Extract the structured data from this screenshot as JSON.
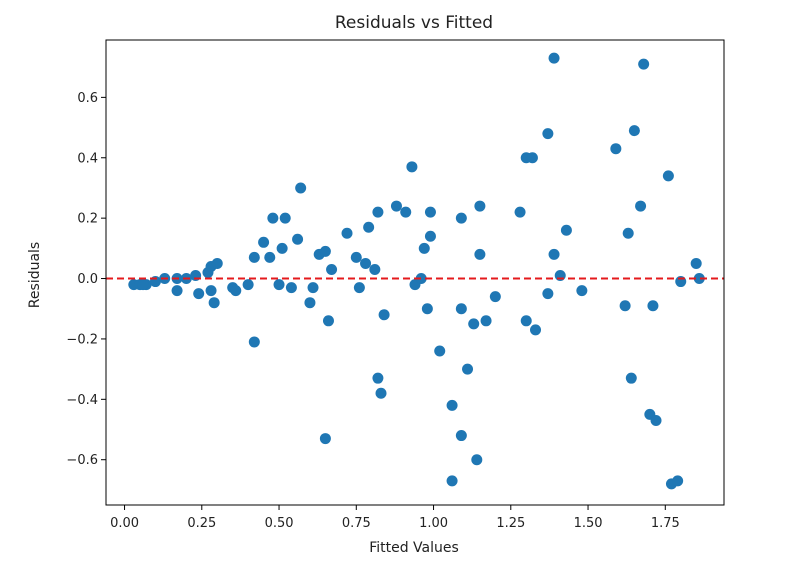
{
  "chart_data": {
    "type": "scatter",
    "title": "Residuals vs Fitted",
    "xlabel": "Fitted Values",
    "ylabel": "Residuals",
    "xlim": [
      -0.06,
      1.94
    ],
    "ylim": [
      -0.75,
      0.79
    ],
    "xticks": [
      0.0,
      0.25,
      0.5,
      0.75,
      1.0,
      1.25,
      1.5,
      1.75
    ],
    "xtick_labels": [
      "0.00",
      "0.25",
      "0.50",
      "0.75",
      "1.00",
      "1.25",
      "1.50",
      "1.75"
    ],
    "yticks": [
      -0.6,
      -0.4,
      -0.2,
      0.0,
      0.2,
      0.4,
      0.6
    ],
    "ytick_labels": [
      "−0.6",
      "−0.4",
      "−0.2",
      "0.0",
      "0.2",
      "0.4",
      "0.6"
    ],
    "grid": false,
    "reference_line": {
      "y": 0.0,
      "color": "#e41a1c",
      "style": "dashed"
    },
    "point_color": "#1f77b4",
    "series": [
      {
        "name": "residuals",
        "x": [
          0.03,
          0.05,
          0.07,
          0.1,
          0.13,
          0.17,
          0.2,
          0.23,
          0.06,
          0.17,
          0.24,
          0.27,
          0.28,
          0.3,
          0.28,
          0.29,
          0.35,
          0.36,
          0.4,
          0.42,
          0.42,
          0.45,
          0.47,
          0.48,
          0.5,
          0.51,
          0.52,
          0.54,
          0.56,
          0.57,
          0.6,
          0.61,
          0.63,
          0.65,
          0.66,
          0.67,
          0.65,
          0.72,
          0.75,
          0.76,
          0.78,
          0.79,
          0.81,
          0.82,
          0.83,
          0.84,
          0.82,
          0.88,
          0.91,
          0.93,
          0.94,
          0.96,
          0.97,
          0.98,
          0.99,
          0.99,
          1.02,
          1.06,
          1.06,
          1.09,
          1.09,
          1.09,
          1.11,
          1.13,
          1.15,
          1.15,
          1.14,
          1.17,
          1.2,
          1.28,
          1.3,
          1.3,
          1.32,
          1.33,
          1.37,
          1.37,
          1.39,
          1.39,
          1.41,
          1.43,
          1.48,
          1.59,
          1.62,
          1.63,
          1.64,
          1.65,
          1.67,
          1.7,
          1.71,
          1.72,
          1.68,
          1.76,
          1.77,
          1.79,
          1.8,
          1.85,
          1.86
        ],
        "y": [
          -0.02,
          -0.02,
          -0.02,
          -0.01,
          0.0,
          0.0,
          0.0,
          0.01,
          -0.02,
          -0.04,
          -0.05,
          0.02,
          0.04,
          0.05,
          -0.04,
          -0.08,
          -0.03,
          -0.04,
          -0.02,
          0.07,
          -0.21,
          0.12,
          0.07,
          0.2,
          -0.02,
          0.1,
          0.2,
          -0.03,
          0.13,
          0.3,
          -0.08,
          -0.03,
          0.08,
          -0.53,
          -0.14,
          0.03,
          0.09,
          0.15,
          0.07,
          -0.03,
          0.05,
          0.17,
          0.03,
          0.22,
          -0.38,
          -0.12,
          -0.33,
          0.24,
          0.22,
          0.37,
          -0.02,
          0.0,
          0.1,
          -0.1,
          0.14,
          0.22,
          -0.24,
          -0.42,
          -0.67,
          0.2,
          -0.1,
          -0.52,
          -0.3,
          -0.15,
          0.08,
          0.24,
          -0.6,
          -0.14,
          -0.06,
          0.22,
          -0.14,
          0.4,
          0.4,
          -0.17,
          0.48,
          -0.05,
          0.73,
          0.08,
          0.01,
          0.16,
          -0.04,
          0.43,
          -0.09,
          0.15,
          -0.33,
          0.49,
          0.24,
          -0.45,
          -0.09,
          -0.47,
          0.71,
          0.34,
          -0.68,
          -0.67,
          -0.01,
          0.05,
          0.0
        ]
      }
    ]
  }
}
